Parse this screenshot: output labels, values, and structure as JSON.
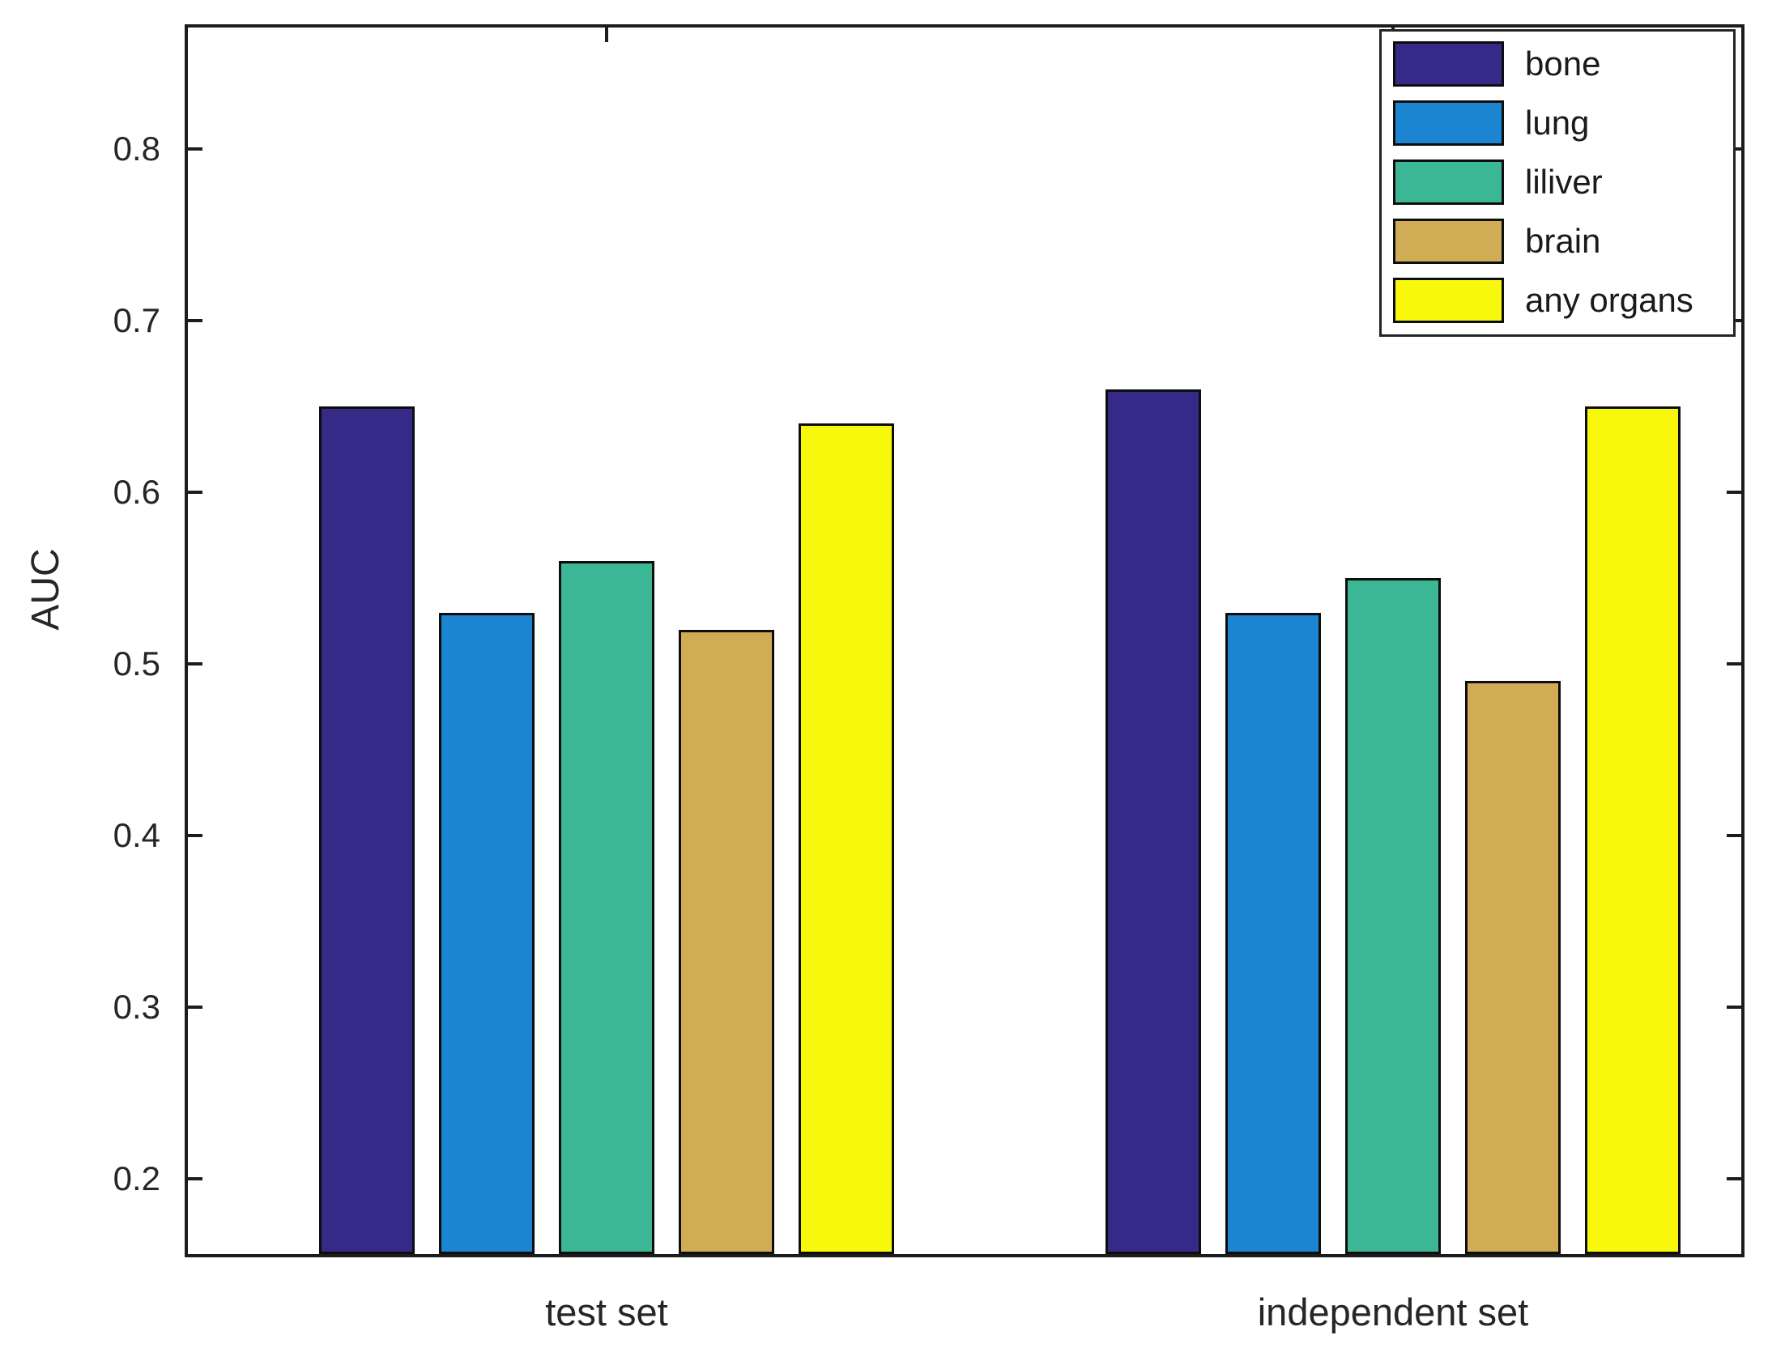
{
  "chart_data": {
    "type": "bar",
    "title": "",
    "ylabel": "AUC",
    "xlabel": "",
    "categories": [
      "test set",
      "independent set"
    ],
    "series": [
      {
        "name": "bone",
        "color": "#352A87",
        "values": [
          0.65,
          0.66
        ]
      },
      {
        "name": "lung",
        "color": "#1B85D1",
        "values": [
          0.53,
          0.53
        ]
      },
      {
        "name": "liliver",
        "color": "#3CB795",
        "values": [
          0.56,
          0.55
        ]
      },
      {
        "name": "brain",
        "color": "#D0AC55",
        "values": [
          0.52,
          0.49
        ]
      },
      {
        "name": "any organs",
        "color": "#F7F80C",
        "values": [
          0.64,
          0.65
        ]
      }
    ],
    "yticks": [
      0.2,
      0.3,
      0.4,
      0.5,
      0.6,
      0.7,
      0.8
    ],
    "ytick_labels": [
      "0.2",
      "0.3",
      "0.4",
      "0.5",
      "0.6",
      "0.7",
      "0.8"
    ],
    "ylim": [
      0.156,
      0.871
    ],
    "grid": false,
    "legend_position": "top-right",
    "axis_color": "#1c1c1c",
    "bar_edge_color": "#0d0d0d"
  }
}
